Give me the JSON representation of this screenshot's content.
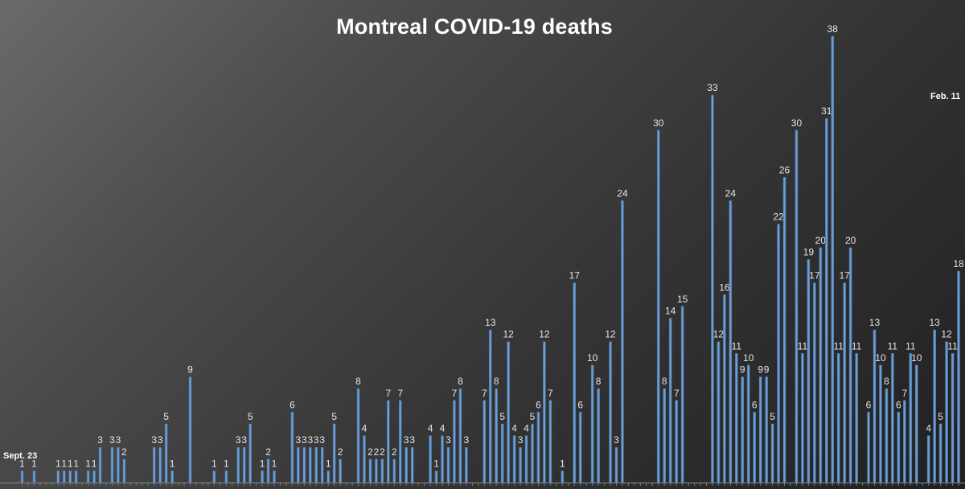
{
  "chart_data": {
    "type": "bar",
    "title": "Montreal COVID-19 deaths",
    "xlabel": "",
    "ylabel": "",
    "ylim": [
      0,
      38
    ],
    "grid": false,
    "legend": "none",
    "annotations": {
      "start": "Sept. 23",
      "end": "Feb. 11"
    },
    "colors": {
      "bar": "#6e9ed1",
      "bar_edge": "#3f6a9c",
      "label": "#e6e6e6"
    },
    "series": [
      {
        "values": [
          1,
          0,
          1,
          0,
          0,
          0,
          1,
          1,
          1,
          1,
          0,
          1,
          1,
          3,
          0,
          3,
          3,
          2,
          0,
          0,
          0,
          0,
          3,
          3,
          5,
          1,
          0,
          0,
          9,
          0,
          0,
          0,
          1,
          0,
          1,
          0,
          3,
          3,
          5,
          0,
          1,
          2,
          1,
          0,
          0,
          6,
          3,
          3,
          3,
          3,
          3,
          1,
          5,
          2,
          0,
          0,
          8,
          4,
          2,
          2,
          2,
          7,
          2,
          7,
          3,
          3,
          0,
          0,
          4,
          1,
          4,
          3,
          7,
          8,
          3,
          0,
          0,
          7,
          13,
          8,
          5,
          12,
          4,
          3,
          4,
          5,
          6,
          12,
          7,
          0,
          1,
          0,
          17,
          6,
          0,
          10,
          8,
          0,
          12,
          3,
          24,
          0,
          0,
          0,
          0,
          0,
          30,
          8,
          14,
          7,
          15,
          0,
          0,
          0,
          0,
          33,
          12,
          16,
          24,
          11,
          9,
          10,
          6,
          9,
          9,
          5,
          22,
          26,
          0,
          30,
          11,
          19,
          17,
          20,
          31,
          38,
          11,
          17,
          20,
          11,
          0,
          6,
          13,
          10,
          8,
          11,
          6,
          7,
          11,
          10,
          0,
          4,
          13,
          5,
          12,
          11,
          18
        ]
      }
    ]
  }
}
